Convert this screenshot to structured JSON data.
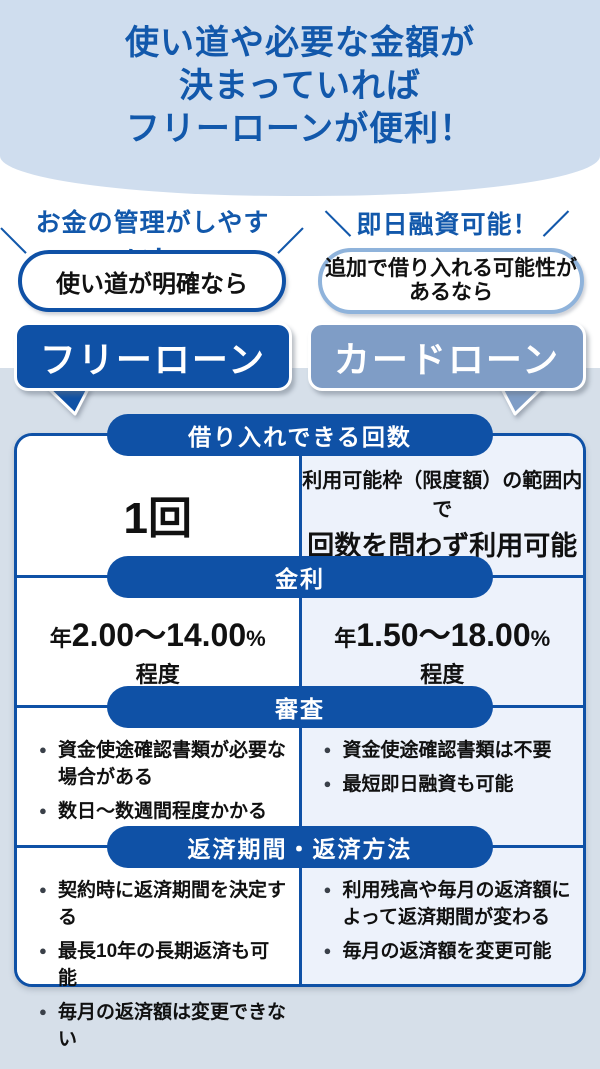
{
  "colors": {
    "primary_blue": "#0F51A6",
    "title_blue": "#1258AB",
    "hero_bg": "#CFDDEE",
    "page_bg": "#D6DFE9",
    "card_loan_bg": "#7F9DC6",
    "light_bubble_border": "#8FB3DB",
    "table_right_col_bg": "#EDF2FB"
  },
  "decor": {
    "slash_left": "＼",
    "slash_right": "／"
  },
  "hero": {
    "title_line1": "使い道や必要な金額が",
    "title_line2": "決まっていれば",
    "title_line3": "フリーローンが便利！"
  },
  "free_loan": {
    "catchphrase": "お金の管理がしやすい！",
    "condition": "使い道が明確なら",
    "name": "フリーローン"
  },
  "card_loan": {
    "catchphrase": "即日融資可能！",
    "condition_line1": "追加で借り入れる可能性が",
    "condition_line2": "あるなら",
    "name": "カードローン"
  },
  "table": {
    "sections": [
      {
        "header": "借り入れできる回数",
        "free": {
          "big": "1回"
        },
        "card": {
          "line1": "利用可能枠（限度額）の範囲内で",
          "line2": "回数を問わず利用可能"
        }
      },
      {
        "header": "金利",
        "free": {
          "prefix": "年",
          "range": "2.00〜14.00",
          "percent": "%",
          "approx": "程度"
        },
        "card": {
          "prefix": "年",
          "range": "1.50〜18.00",
          "percent": "%",
          "approx": "程度"
        }
      },
      {
        "header": "審査",
        "free_bullets": [
          "資金使途確認書類が必要な場合がある",
          "数日〜数週間程度かかる"
        ],
        "card_bullets": [
          "資金使途確認書類は不要",
          "最短即日融資も可能"
        ]
      },
      {
        "header": "返済期間・返済方法",
        "free_bullets": [
          "契約時に返済期間を決定する",
          "最長10年の長期返済も可能",
          "毎月の返済額は変更できない"
        ],
        "card_bullets": [
          "利用残高や毎月の返済額によって返済期間が変わる",
          "毎月の返済額を変更可能"
        ]
      }
    ]
  }
}
